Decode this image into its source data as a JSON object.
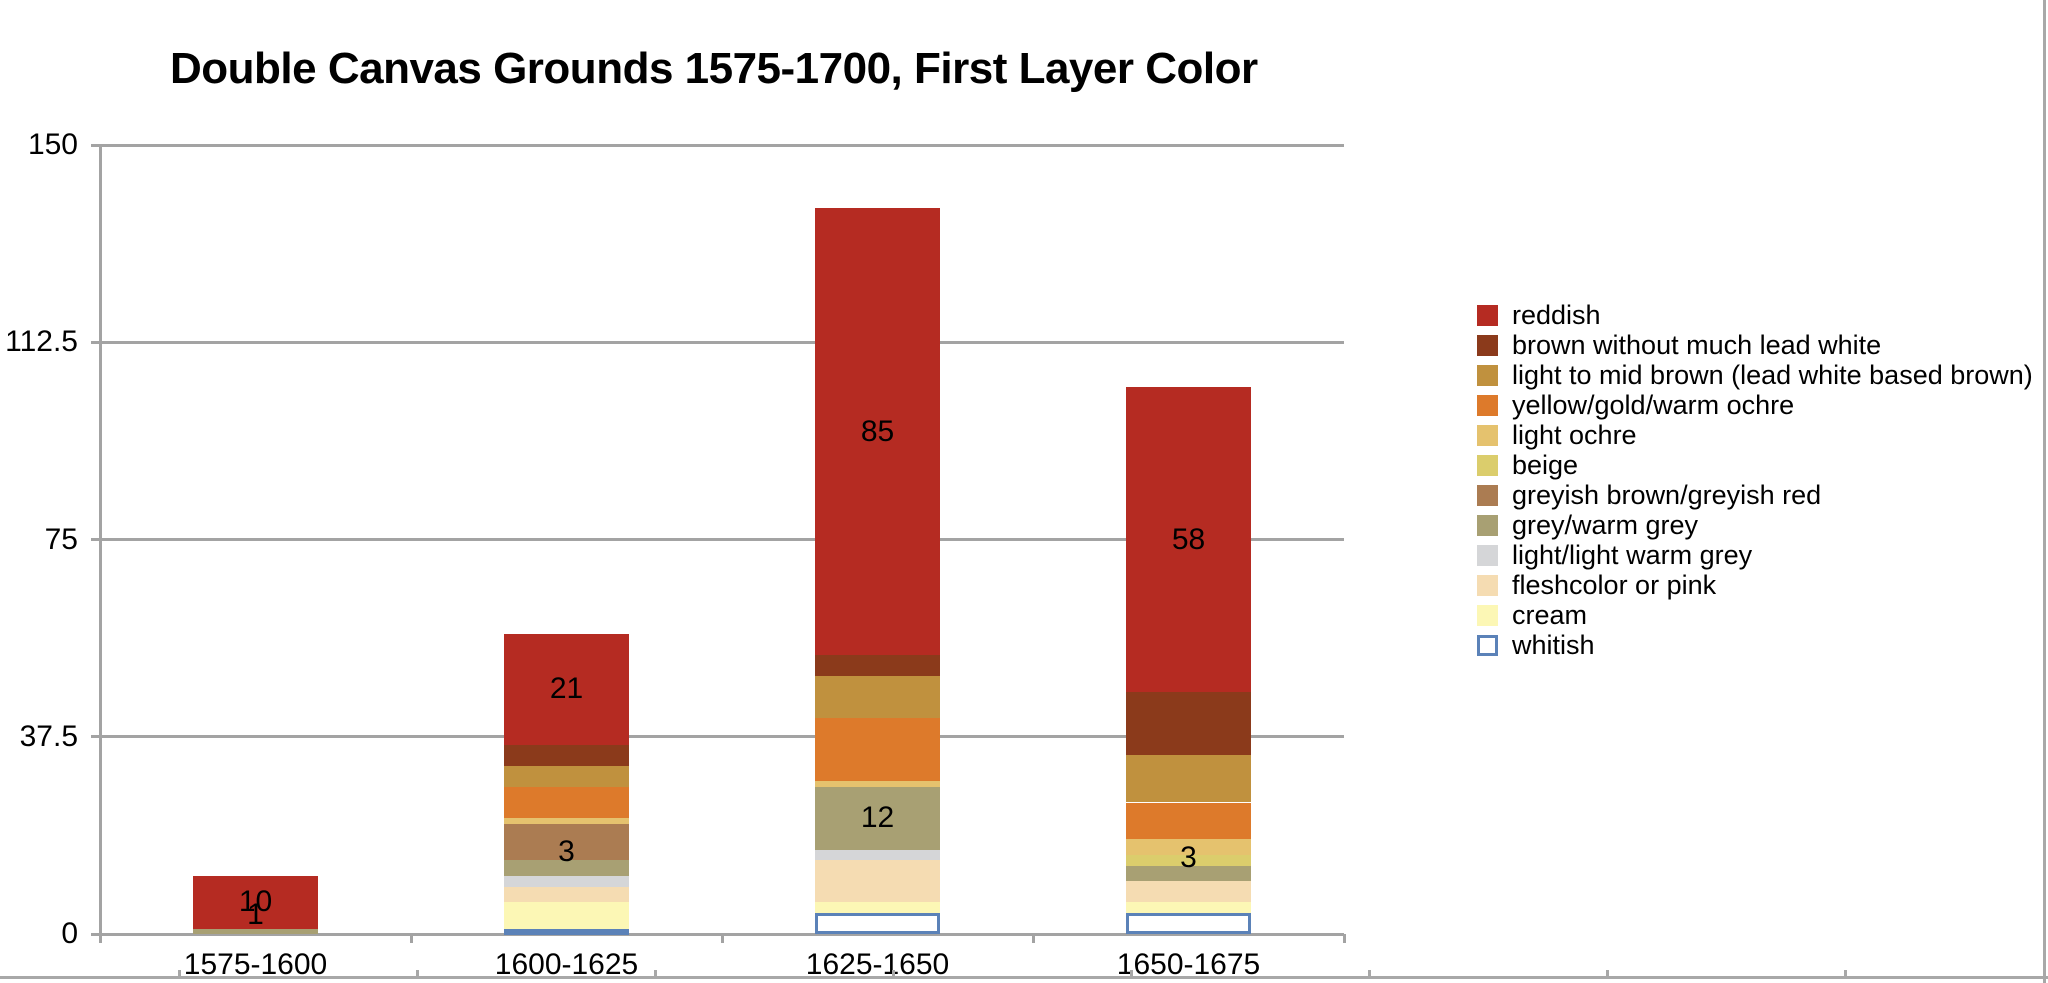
{
  "title": "Double Canvas Grounds 1575-1700, First Layer Color",
  "colors": {
    "gridline": "#a3a3a3",
    "text": "#000000",
    "whitish_border": "#5b82b8",
    "canvas_edge": "#a8a8a8"
  },
  "chart_data": {
    "type": "bar",
    "stacked": true,
    "grid": true,
    "legend_position": "right",
    "title": "Double Canvas Grounds 1575-1700, First Layer Color",
    "xlabel": "",
    "ylabel": "",
    "ylim": [
      0,
      150
    ],
    "yticks": [
      {
        "value": 0,
        "label": "0"
      },
      {
        "value": 37.5,
        "label": "37.5"
      },
      {
        "value": 75,
        "label": "75"
      },
      {
        "value": 112.5,
        "label": "112.5"
      },
      {
        "value": 150,
        "label": "150"
      }
    ],
    "categories": [
      "1575-1600",
      "1600-1625",
      "1625-1650",
      "1650-1675"
    ],
    "series": [
      {
        "name": "reddish",
        "color": "#b52b22",
        "values": [
          10,
          21,
          85,
          58
        ],
        "labeled": true
      },
      {
        "name": "brown without much lead white",
        "color": "#8b3a1b",
        "values": [
          0,
          4,
          4,
          12
        ],
        "labeled": false
      },
      {
        "name": "light to mid brown (lead white based brown)",
        "color": "#c0913e",
        "values": [
          0,
          4,
          8,
          9
        ],
        "labeled": false
      },
      {
        "name": "yellow/gold/warm ochre",
        "color": "#dd7a2b",
        "values": [
          0,
          6,
          12,
          7
        ],
        "labeled": false
      },
      {
        "name": "light ochre",
        "color": "#e5c26e",
        "values": [
          0,
          1,
          1,
          3
        ],
        "labeled": false
      },
      {
        "name": "beige",
        "color": "#dbcd6c",
        "values": [
          0,
          0,
          0,
          2
        ],
        "labeled": false
      },
      {
        "name": "greyish brown/greyish red",
        "color": "#ab7c52",
        "values": [
          0,
          7,
          0,
          0
        ],
        "labeled": false
      },
      {
        "name": "grey/warm grey",
        "color": "#a8a073",
        "values": [
          1,
          3,
          12,
          3
        ],
        "labeled": true
      },
      {
        "name": "light/light warm grey",
        "color": "#d5d6d8",
        "values": [
          0,
          2,
          2,
          0
        ],
        "labeled": false
      },
      {
        "name": "fleshcolor or pink",
        "color": "#f5dcb2",
        "values": [
          0,
          3,
          8,
          4
        ],
        "labeled": false
      },
      {
        "name": "cream",
        "color": "#fcf7b5",
        "values": [
          0,
          5,
          2,
          2
        ],
        "labeled": false
      },
      {
        "name": "whitish",
        "color": "#ffffff",
        "values": [
          0,
          1,
          4,
          4
        ],
        "labeled": false,
        "border": "#5b82b8"
      }
    ]
  }
}
